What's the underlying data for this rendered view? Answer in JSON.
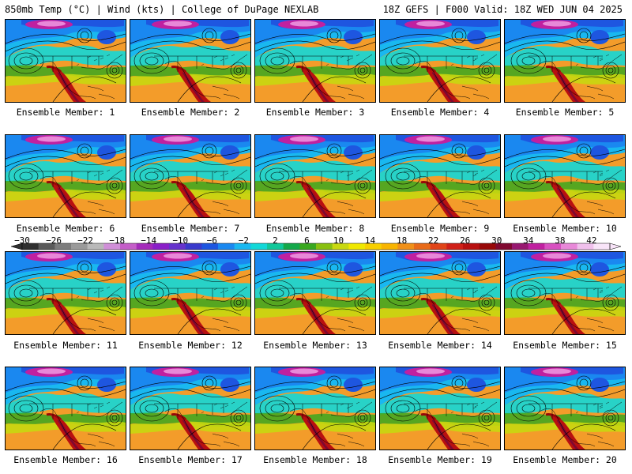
{
  "header": {
    "title_left": "850mb Temp (°C) | Wind (kts) | College of DuPage NEXLAB",
    "title_right": "18Z GEFS | F000 Valid: 18Z WED JUN 04 2025"
  },
  "members": [
    {
      "label": "Ensemble Member: 1"
    },
    {
      "label": "Ensemble Member: 2"
    },
    {
      "label": "Ensemble Member: 3"
    },
    {
      "label": "Ensemble Member: 4"
    },
    {
      "label": "Ensemble Member: 5"
    },
    {
      "label": "Ensemble Member: 6"
    },
    {
      "label": "Ensemble Member: 7"
    },
    {
      "label": "Ensemble Member: 8"
    },
    {
      "label": "Ensemble Member: 9"
    },
    {
      "label": "Ensemble Member: 10"
    },
    {
      "label": "Ensemble Member: 11"
    },
    {
      "label": "Ensemble Member: 12"
    },
    {
      "label": "Ensemble Member: 13"
    },
    {
      "label": "Ensemble Member: 14"
    },
    {
      "label": "Ensemble Member: 15"
    },
    {
      "label": "Ensemble Member: 16"
    },
    {
      "label": "Ensemble Member: 17"
    },
    {
      "label": "Ensemble Member: 18"
    },
    {
      "label": "Ensemble Member: 19"
    },
    {
      "label": "Ensemble Member: 20"
    }
  ],
  "colorbar": {
    "tick_labels": [
      "-30",
      "-26",
      "-22",
      "-18",
      "-14",
      "-10",
      "-6",
      "-2",
      "2",
      "6",
      "10",
      "14",
      "18",
      "22",
      "26",
      "30",
      "34",
      "38",
      "42"
    ],
    "colors": [
      "#2f2f2f",
      "#5a5a5a",
      "#7c7c7c",
      "#9a9a9a",
      "#b9b9b9",
      "#d08fd8",
      "#c45ec8",
      "#a42aba",
      "#8a1fc8",
      "#6633cc",
      "#3a3acc",
      "#1e56e0",
      "#1a88f0",
      "#19b8f0",
      "#12d8d8",
      "#10c89a",
      "#14a84a",
      "#3aa820",
      "#88c010",
      "#c8d810",
      "#f0e800",
      "#f8d000",
      "#f8b400",
      "#f09018",
      "#e86a18",
      "#e04418",
      "#d02018",
      "#b81010",
      "#980808",
      "#800830",
      "#981870",
      "#c020a0",
      "#d850c0",
      "#e888d8",
      "#f0c0ec",
      "#f8e4f8"
    ]
  }
}
